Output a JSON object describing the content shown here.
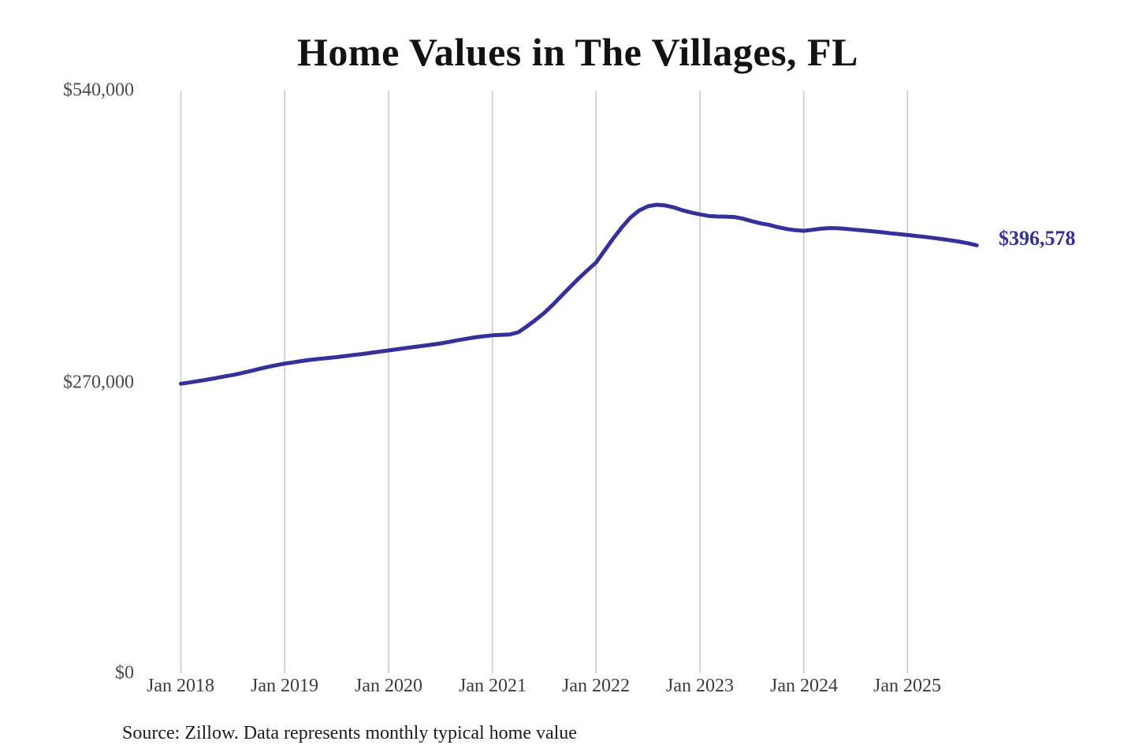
{
  "chart": {
    "title": "Home Values in The Villages, FL",
    "end_label": "$396,578",
    "source": "Source: Zillow. Data represents monthly typical home value"
  },
  "chart_data": {
    "type": "line",
    "title": "Home Values in The Villages, FL",
    "xlabel": "",
    "ylabel": "",
    "ylim": [
      0,
      540000
    ],
    "y_ticks": [
      540000,
      270000,
      0
    ],
    "y_tick_labels": [
      "$540,000",
      "$270,000",
      "$0"
    ],
    "x_tick_labels": [
      "Jan 2018",
      "Jan 2019",
      "Jan 2020",
      "Jan 2021",
      "Jan 2022",
      "Jan 2023",
      "Jan 2024",
      "Jan 2025"
    ],
    "grid": "vertical-only",
    "gridline_color": "#c9c9c9",
    "legend": "none",
    "line_color": "#35309b",
    "end_label": "$396,578",
    "end_value": 396578,
    "source": "Source: Zillow. Data represents monthly typical home value",
    "x": [
      "2018-01",
      "2018-02",
      "2018-03",
      "2018-04",
      "2018-05",
      "2018-06",
      "2018-07",
      "2018-08",
      "2018-09",
      "2018-10",
      "2018-11",
      "2018-12",
      "2019-01",
      "2019-02",
      "2019-03",
      "2019-04",
      "2019-05",
      "2019-06",
      "2019-07",
      "2019-08",
      "2019-09",
      "2019-10",
      "2019-11",
      "2019-12",
      "2020-01",
      "2020-02",
      "2020-03",
      "2020-04",
      "2020-05",
      "2020-06",
      "2020-07",
      "2020-08",
      "2020-09",
      "2020-10",
      "2020-11",
      "2020-12",
      "2021-01",
      "2021-02",
      "2021-03",
      "2021-04",
      "2021-05",
      "2021-06",
      "2021-07",
      "2021-08",
      "2021-09",
      "2021-10",
      "2021-11",
      "2021-12",
      "2022-01",
      "2022-02",
      "2022-03",
      "2022-04",
      "2022-05",
      "2022-06",
      "2022-07",
      "2022-08",
      "2022-09",
      "2022-10",
      "2022-11",
      "2022-12",
      "2023-01",
      "2023-02",
      "2023-03",
      "2023-04",
      "2023-05",
      "2023-06",
      "2023-07",
      "2023-08",
      "2023-09",
      "2023-10",
      "2023-11",
      "2023-12",
      "2024-01",
      "2024-02",
      "2024-03",
      "2024-04",
      "2024-05",
      "2024-06",
      "2024-07",
      "2024-08",
      "2024-09",
      "2024-10",
      "2024-11",
      "2024-12",
      "2025-01",
      "2025-02",
      "2025-03",
      "2025-04",
      "2025-05",
      "2025-06",
      "2025-07",
      "2025-08",
      "2025-09"
    ],
    "series": [
      {
        "name": "Monthly typical home value",
        "values": [
          268300,
          269500,
          270800,
          272100,
          273500,
          275000,
          276400,
          278200,
          280000,
          282000,
          283800,
          285500,
          287000,
          288200,
          289400,
          290500,
          291400,
          292200,
          293000,
          294000,
          295000,
          295900,
          297000,
          298100,
          299200,
          300300,
          301400,
          302500,
          303500,
          304600,
          305700,
          307100,
          308600,
          310000,
          311300,
          312300,
          313200,
          313600,
          314000,
          316000,
          321500,
          327500,
          334000,
          341500,
          349800,
          358000,
          366000,
          373500,
          380700,
          392000,
          403100,
          413500,
          422600,
          429000,
          432800,
          434200,
          433500,
          431700,
          429000,
          427000,
          425300,
          423800,
          423300,
          423200,
          422800,
          421200,
          419000,
          417000,
          415500,
          413500,
          411800,
          410600,
          410000,
          411000,
          412000,
          412600,
          412400,
          411800,
          411000,
          410300,
          409500,
          408700,
          407800,
          407000,
          406200,
          405300,
          404400,
          403400,
          402400,
          401200,
          400000,
          398500,
          396578
        ]
      }
    ]
  }
}
